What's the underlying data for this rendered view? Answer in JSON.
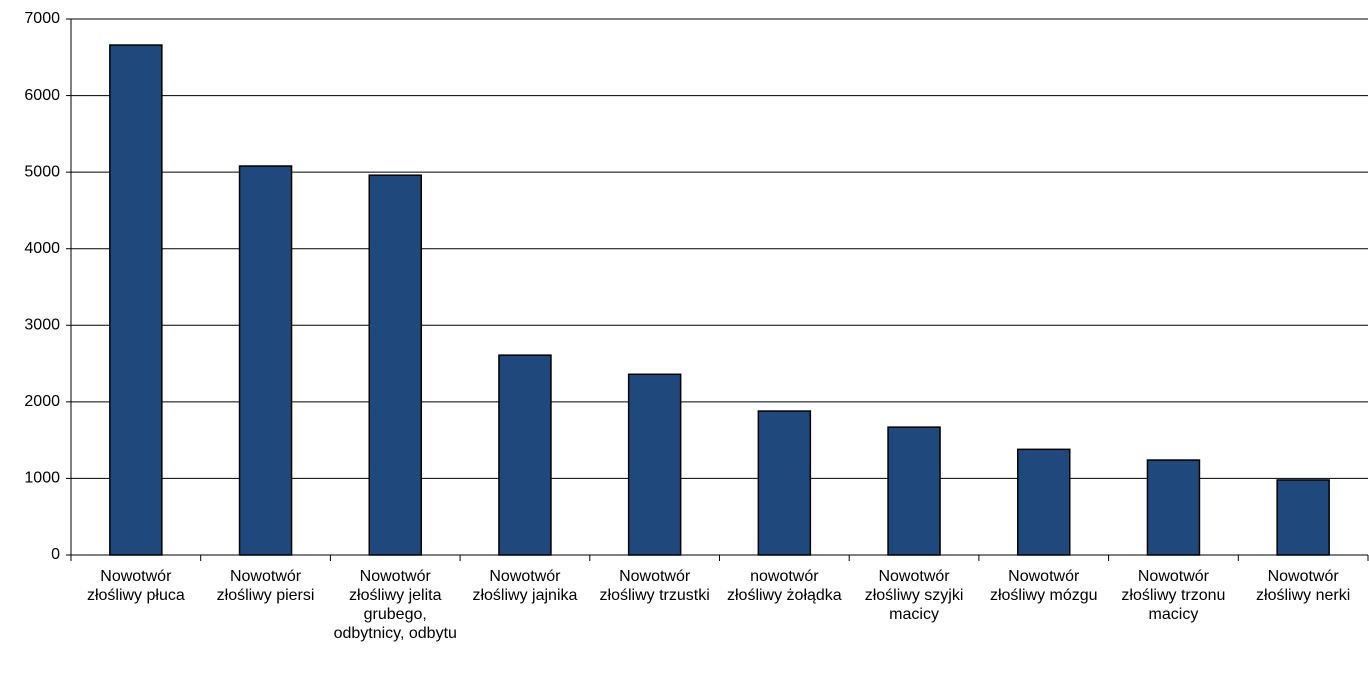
{
  "chart_data": {
    "type": "bar",
    "categories": [
      "Nowotwór złośliwy płuca",
      "Nowotwór złośliwy piersi",
      "Nowotwór złośliwy jelita grubego, odbytnicy, odbytu",
      "Nowotwór złośliwy jajnika",
      "Nowotwór złośliwy trzustki",
      "nowotwór złośliwy żołądka",
      "Nowotwór złośliwy szyjki macicy",
      "Nowotwór złośliwy mózgu",
      "Nowotwór złośliwy trzonu macicy",
      "Nowotwór złośliwy nerki"
    ],
    "values": [
      6660,
      5080,
      4960,
      2610,
      2360,
      1880,
      1670,
      1380,
      1240,
      980
    ],
    "color": "#1f497d",
    "ylim": [
      0,
      7000
    ],
    "yticks": [
      0,
      1000,
      2000,
      3000,
      4000,
      5000,
      6000,
      7000
    ],
    "grid": true
  }
}
